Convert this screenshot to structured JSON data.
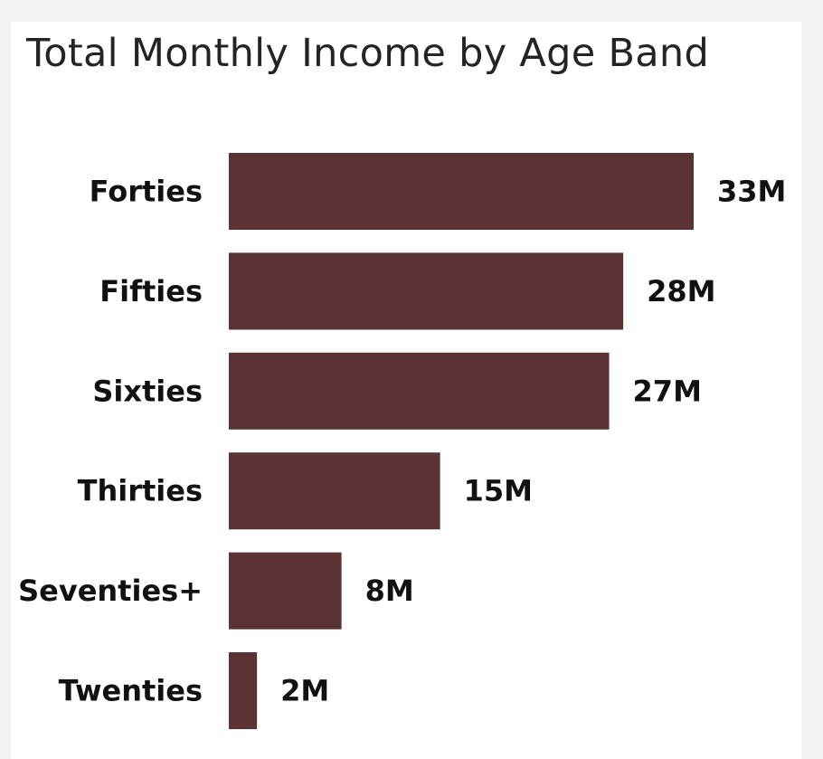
{
  "chart_data": {
    "type": "bar",
    "orientation": "horizontal",
    "title": "Total Monthly Income by Age Band",
    "categories": [
      "Forties",
      "Fifties",
      "Sixties",
      "Thirties",
      "Seventies+",
      "Twenties"
    ],
    "values": [
      33,
      28,
      27,
      15,
      8,
      2
    ],
    "value_labels": [
      "33M",
      "28M",
      "27M",
      "15M",
      "8M",
      "2M"
    ],
    "unit": "M",
    "xlim": [
      0,
      33
    ],
    "grid": false,
    "legend": "none",
    "bar_color": "#5b3335"
  }
}
